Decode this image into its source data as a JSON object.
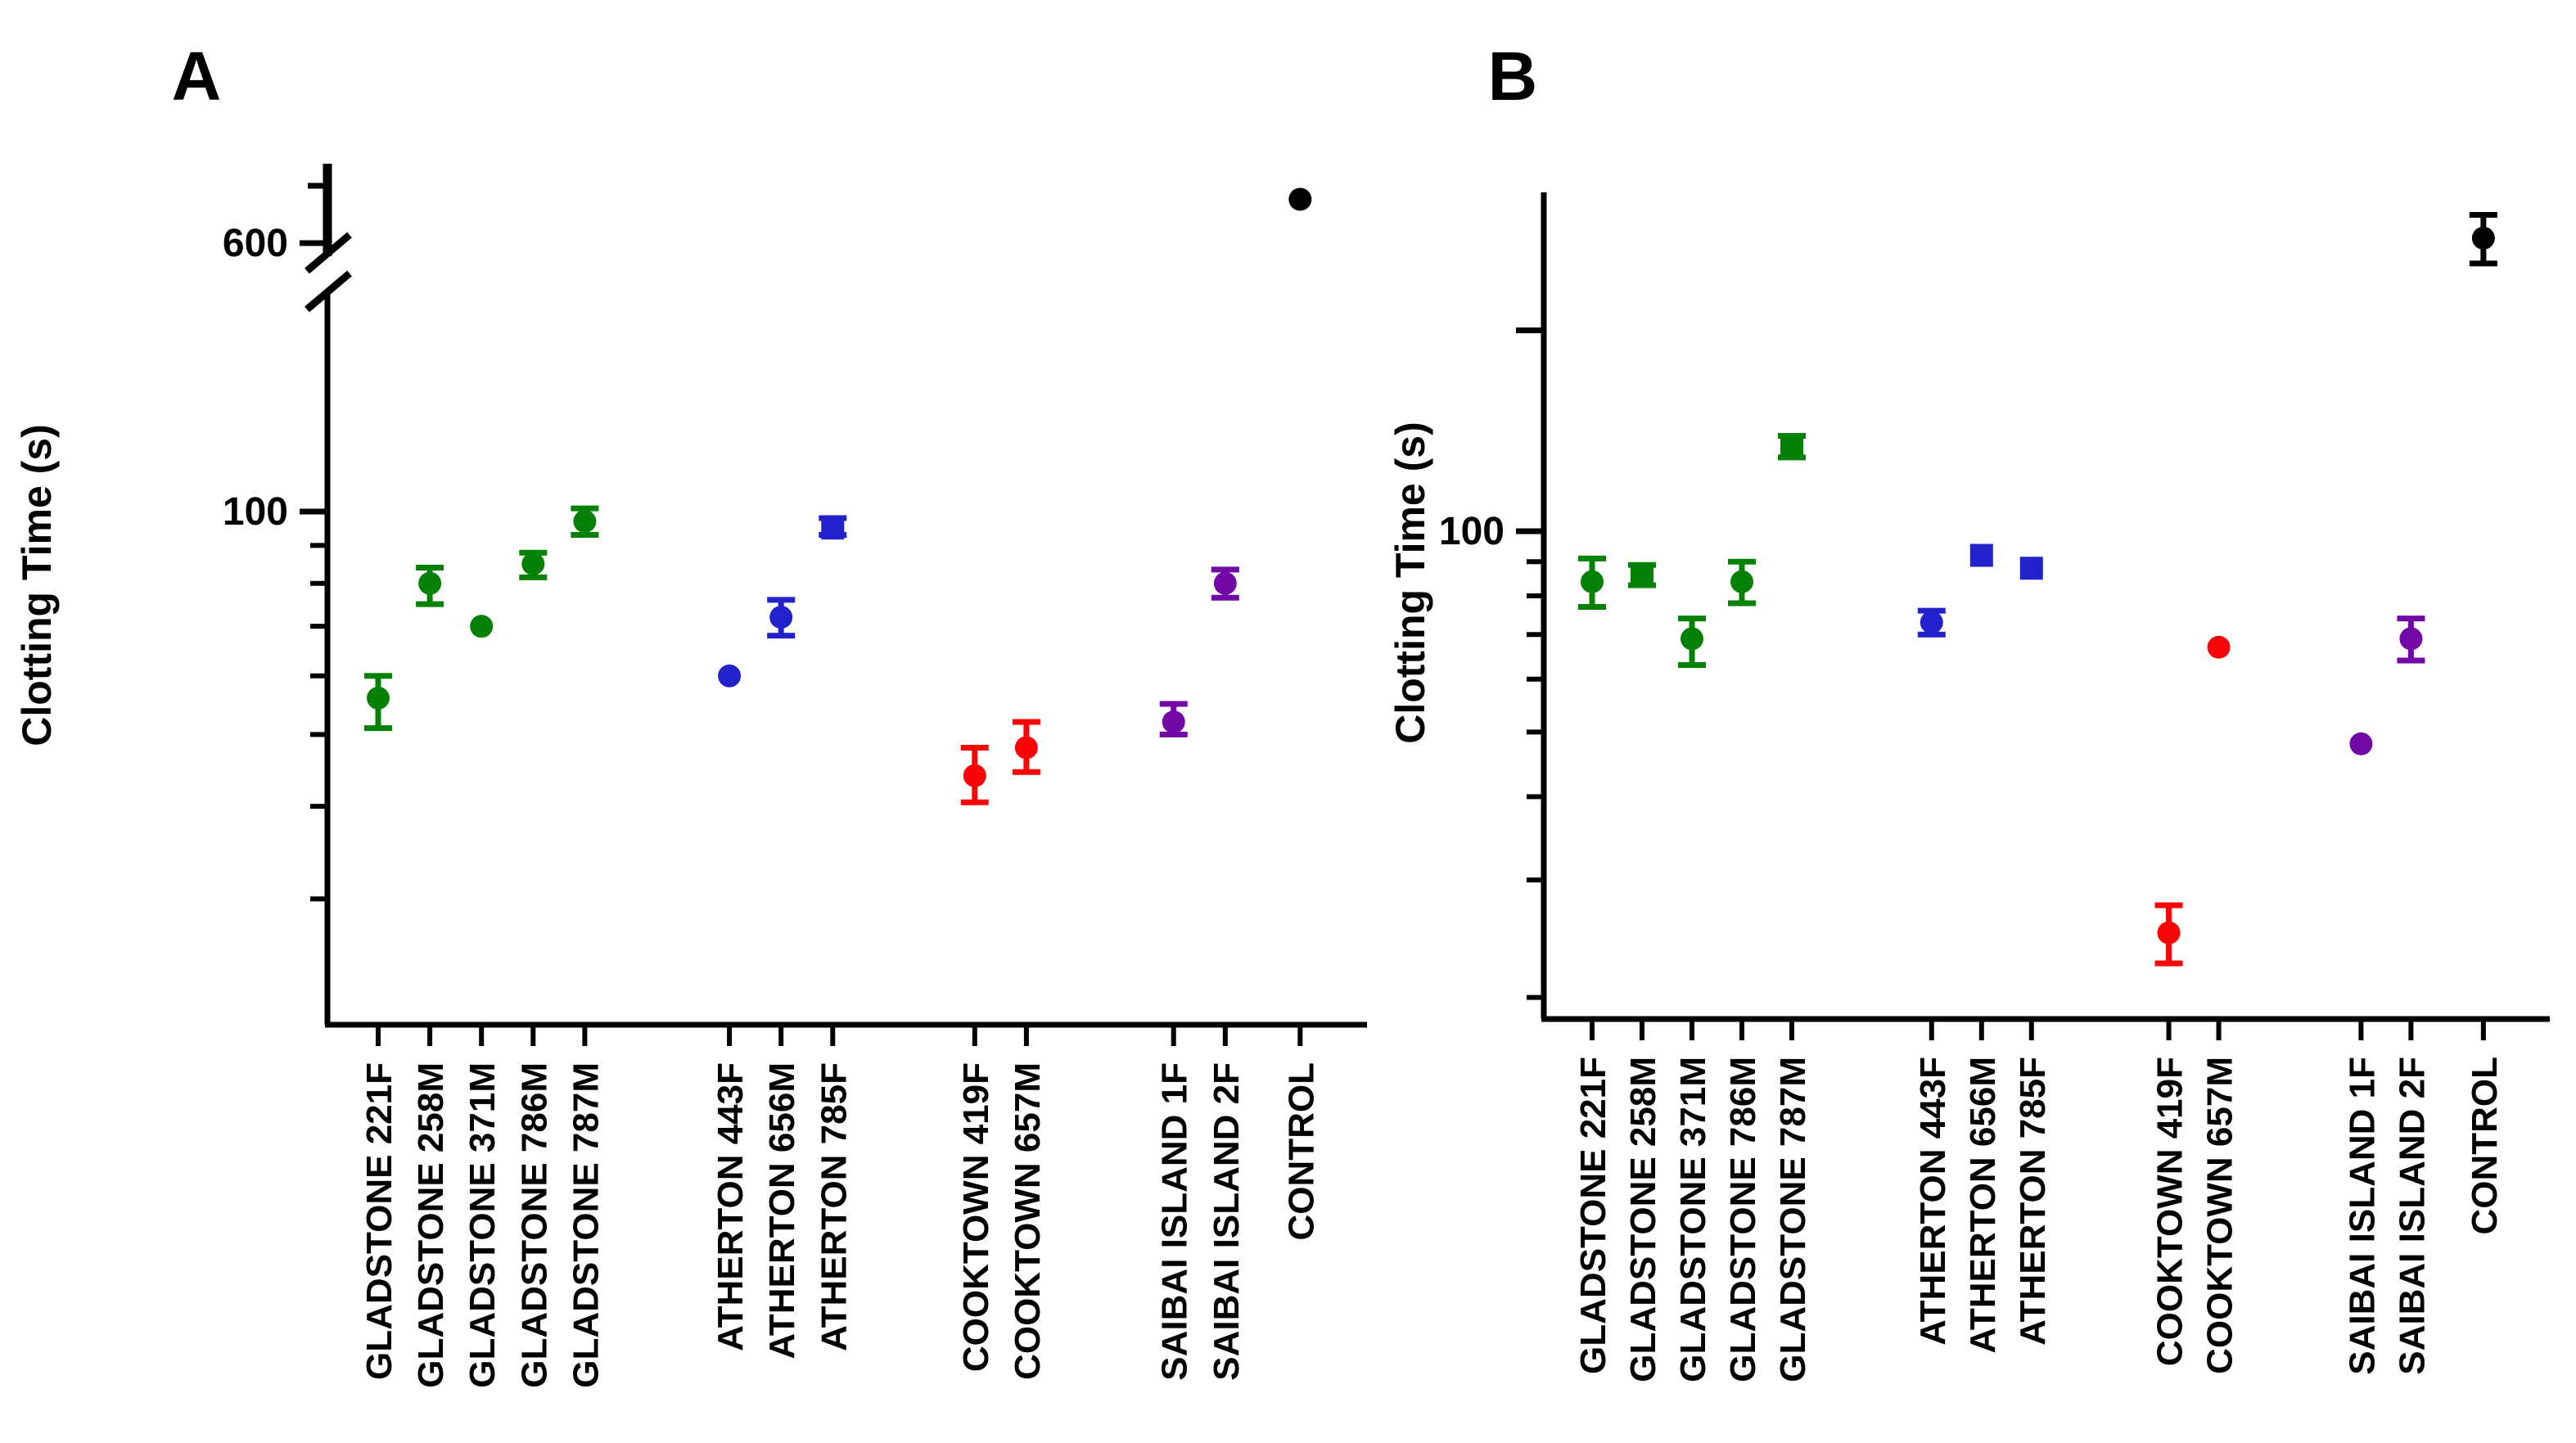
{
  "figure": {
    "background": "#ffffff",
    "colors": {
      "GLADSTONE": "#058205",
      "ATHERTON": "#2222CC",
      "COOKTOWN": "#FA0505",
      "SAIBAI ISLAND": "#7209A6",
      "CONTROL": "#000000"
    }
  },
  "chart_data": [
    {
      "panel": "A",
      "type": "scatter",
      "title": "A",
      "ylabel": "Clotting Time (s)",
      "yscale": "log",
      "yaxis_labeled_ticks": [
        600,
        100
      ],
      "yaxis_minor_ticks": [
        90,
        80,
        70,
        60,
        50,
        40,
        30
      ],
      "yaxis_break": {
        "between": [
          100,
          600
        ],
        "upper_unlabeled_tick": 700
      },
      "ylim": [
        20,
        700
      ],
      "legend": "none",
      "grid": "off",
      "categories": [
        "GLADSTONE 221F",
        "GLADSTONE 258M",
        "GLADSTONE 371M",
        "GLADSTONE 786M",
        "GLADSTONE 787M",
        "ATHERTON 443F",
        "ATHERTON 656M",
        "ATHERTON 785F",
        "COOKTOWN 419F",
        "COOKTOWN 657M",
        "SAIBAI ISLAND 1F",
        "SAIBAI ISLAND 2F",
        "CONTROL"
      ],
      "points": [
        {
          "label": "GLADSTONE 221F",
          "group": "GLADSTONE",
          "marker": "circle",
          "value": 56,
          "err_low": 51,
          "err_high": 60
        },
        {
          "label": "GLADSTONE 258M",
          "group": "GLADSTONE",
          "marker": "circle",
          "value": 80,
          "err_low": 75,
          "err_high": 84
        },
        {
          "label": "GLADSTONE 371M",
          "group": "GLADSTONE",
          "marker": "circle",
          "value": 70
        },
        {
          "label": "GLADSTONE 786M",
          "group": "GLADSTONE",
          "marker": "circle",
          "value": 85,
          "err_low": 81.5,
          "err_high": 88
        },
        {
          "label": "GLADSTONE 787M",
          "group": "GLADSTONE",
          "marker": "circle",
          "value": 97,
          "err_low": 93,
          "err_high": 101
        },
        {
          "label": "ATHERTON 443F",
          "group": "ATHERTON",
          "marker": "circle",
          "value": 60
        },
        {
          "label": "ATHERTON 656M",
          "group": "ATHERTON",
          "marker": "circle",
          "value": 72,
          "err_low": 68,
          "err_high": 76
        },
        {
          "label": "ATHERTON 785F",
          "group": "ATHERTON",
          "marker": "square",
          "value": 95,
          "err_low": 93,
          "err_high": 98
        },
        {
          "label": "COOKTOWN 419F",
          "group": "COOKTOWN",
          "marker": "circle",
          "value": 44,
          "err_low": 40.5,
          "err_high": 48
        },
        {
          "label": "COOKTOWN 657M",
          "group": "COOKTOWN",
          "marker": "circle",
          "value": 48,
          "err_low": 44.5,
          "err_high": 52
        },
        {
          "label": "SAIBAI ISLAND 1F",
          "group": "SAIBAI ISLAND",
          "marker": "circle",
          "value": 52,
          "err_low": 50,
          "err_high": 55
        },
        {
          "label": "SAIBAI ISLAND 2F",
          "group": "SAIBAI ISLAND",
          "marker": "circle",
          "value": 80,
          "err_low": 76.5,
          "err_high": 83.5
        },
        {
          "label": "CONTROL",
          "group": "CONTROL",
          "marker": "circle",
          "value": 675
        }
      ]
    },
    {
      "panel": "B",
      "type": "scatter",
      "title": "B",
      "ylabel": "Clotting Time (s)",
      "yscale": "log",
      "yaxis_labeled_ticks": [
        100
      ],
      "yaxis_major_unlabeled_ticks": [
        200
      ],
      "yaxis_minor_ticks": [
        90,
        80,
        70,
        60,
        50,
        40,
        30,
        20
      ],
      "yaxis_break": null,
      "ylim": [
        18,
        320
      ],
      "legend": "none",
      "grid": "off",
      "categories": [
        "GLADSTONE 221F",
        "GLADSTONE 258M",
        "GLADSTONE 371M",
        "GLADSTONE 786M",
        "GLADSTONE 787M",
        "ATHERTON 443F",
        "ATHERTON 656M",
        "ATHERTON 785F",
        "COOKTOWN 419F",
        "COOKTOWN 657M",
        "SAIBAI ISLAND 1F",
        "SAIBAI ISLAND 2F",
        "CONTROL"
      ],
      "points": [
        {
          "label": "GLADSTONE 221F",
          "group": "GLADSTONE",
          "marker": "circle",
          "value": 84,
          "err_low": 77,
          "err_high": 91
        },
        {
          "label": "GLADSTONE 258M",
          "group": "GLADSTONE",
          "marker": "square",
          "value": 86,
          "err_low": 83,
          "err_high": 89
        },
        {
          "label": "GLADSTONE 371M",
          "group": "GLADSTONE",
          "marker": "circle",
          "value": 69,
          "err_low": 63,
          "err_high": 74
        },
        {
          "label": "GLADSTONE 786M",
          "group": "GLADSTONE",
          "marker": "circle",
          "value": 84,
          "err_low": 78,
          "err_high": 90
        },
        {
          "label": "GLADSTONE 787M",
          "group": "GLADSTONE",
          "marker": "square",
          "value": 134,
          "err_low": 129,
          "err_high": 139
        },
        {
          "label": "ATHERTON 443F",
          "group": "ATHERTON",
          "marker": "circle",
          "value": 73,
          "err_low": 70,
          "err_high": 76
        },
        {
          "label": "ATHERTON 656M",
          "group": "ATHERTON",
          "marker": "square",
          "value": 92
        },
        {
          "label": "ATHERTON 785F",
          "group": "ATHERTON",
          "marker": "square",
          "value": 88
        },
        {
          "label": "COOKTOWN 419F",
          "group": "COOKTOWN",
          "marker": "circle",
          "value": 25,
          "err_low": 22.5,
          "err_high": 27.5
        },
        {
          "label": "COOKTOWN 657M",
          "group": "COOKTOWN",
          "marker": "circle",
          "value": 67
        },
        {
          "label": "SAIBAI ISLAND 1F",
          "group": "SAIBAI ISLAND",
          "marker": "circle",
          "value": 48
        },
        {
          "label": "SAIBAI ISLAND 2F",
          "group": "SAIBAI ISLAND",
          "marker": "circle",
          "value": 69,
          "err_low": 64,
          "err_high": 74
        },
        {
          "label": "CONTROL",
          "group": "CONTROL",
          "marker": "circle",
          "value": 275,
          "err_low": 252,
          "err_high": 298
        }
      ]
    }
  ]
}
